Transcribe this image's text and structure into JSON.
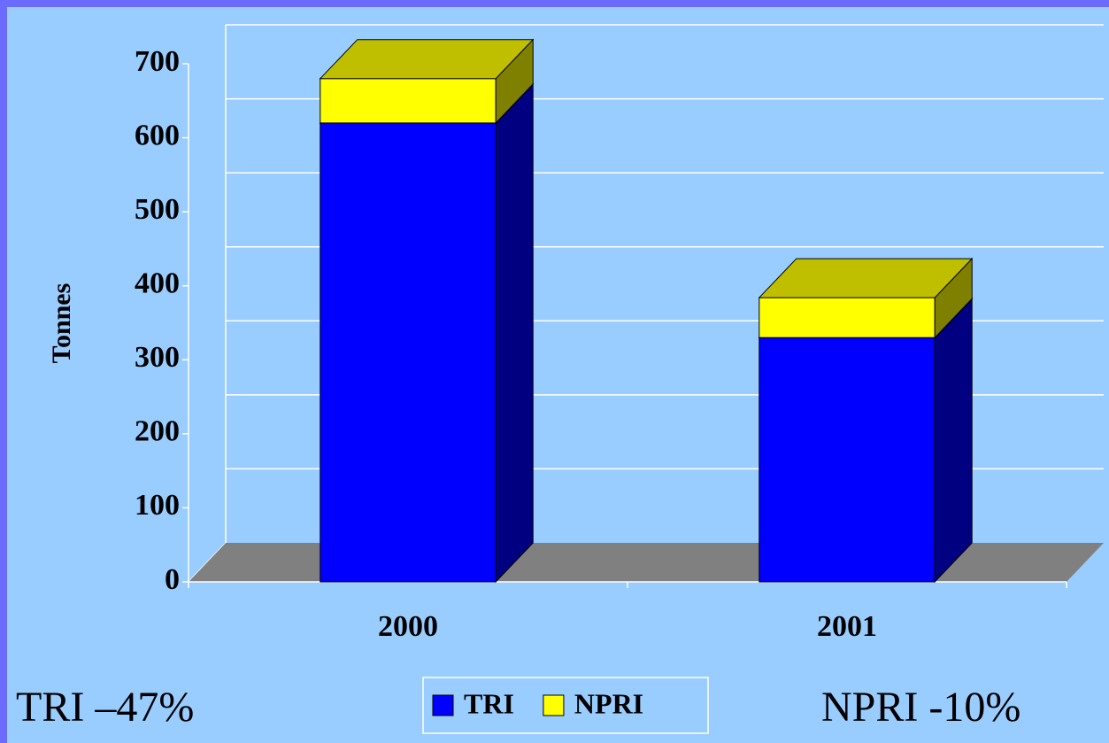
{
  "chart_data": {
    "type": "bar3d_stacked",
    "y_label": "Tonnes",
    "categories": [
      "2000",
      "2001"
    ],
    "series": [
      {
        "name": "TRI",
        "color": "#0000ff",
        "values": [
          620,
          330
        ]
      },
      {
        "name": "NPRI",
        "color": "#ffff00",
        "values": [
          60,
          54
        ]
      }
    ],
    "ylim": [
      0,
      700
    ],
    "yticks": [
      0,
      100,
      200,
      300,
      400,
      500,
      600,
      700
    ],
    "grid": true,
    "legend": "bottom",
    "annotations": [
      "TRI  –47%",
      "NPRI -10%"
    ]
  }
}
